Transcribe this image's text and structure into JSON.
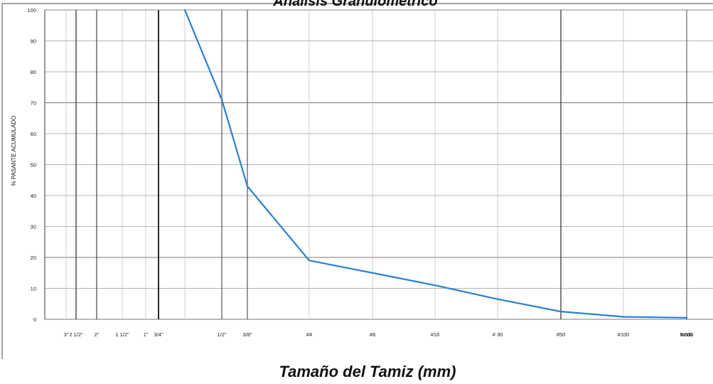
{
  "chart_data": {
    "type": "line",
    "title": "Análisis Granulométrico",
    "xlabel": "Tamaño del Tamiz (mm)",
    "ylabel": "% PASANTE ACUMULADO",
    "ylim": [
      0,
      100
    ],
    "yticks": [
      0,
      10,
      20,
      30,
      40,
      50,
      60,
      70,
      80,
      90,
      100
    ],
    "x_scale": "categorical sieve sizes (non-uniform spacing)",
    "categories": [
      "3\"",
      "2 1/2\"",
      "2\"",
      "1 1/2\"",
      "1\"",
      "3/4\"",
      "",
      "1/2\"",
      "3/8\"",
      "#4",
      "#8",
      "#16",
      "# 30",
      "#50",
      "#100",
      "#200",
      "fondo"
    ],
    "grid": true,
    "series": [
      {
        "color": "#2a7fd0",
        "points": [
          {
            "x": "",
            "y": 100
          },
          {
            "x": "1/2\"",
            "y": 71
          },
          {
            "x": "3/8\"",
            "y": 43
          },
          {
            "x": "#4",
            "y": 19
          },
          {
            "x": "#8",
            "y": 15
          },
          {
            "x": "#16",
            "y": 11
          },
          {
            "x": "# 30",
            "y": 6.5
          },
          {
            "x": "#50",
            "y": 2.5
          },
          {
            "x": "#100",
            "y": 0.8
          },
          {
            "x": "#200",
            "y": 0.5
          },
          {
            "x": "fondo",
            "y": 0.3
          }
        ]
      }
    ]
  }
}
